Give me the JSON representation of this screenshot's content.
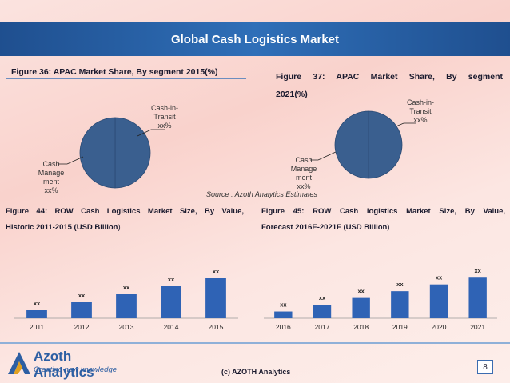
{
  "header": {
    "title": "Global Cash Logistics Market"
  },
  "source": "Source : Azoth Analytics Estimates",
  "footer": {
    "logo_name": "Azoth Analytics",
    "logo_tagline": "Creating new knowledge",
    "copyright": "(c) AZOTH Analytics",
    "page_number": "8"
  },
  "chart_data": [
    {
      "type": "pie",
      "title": "Figure 36: APAC Market Share, By segment 2015(%)",
      "categories": [
        "Cash-in-Transit",
        "Cash Management"
      ],
      "values": [
        50,
        50
      ],
      "labels": [
        "Cash-in-Transit xx%",
        "Cash Manage ment xx%"
      ],
      "colors": [
        "#3a5f8f",
        "#3a5f8f"
      ]
    },
    {
      "type": "pie",
      "title_line1": "Figure 37: APAC Market Share, By segment",
      "title_line2": "2021(%)",
      "categories": [
        "Cash-in-Transit",
        "Cash Management"
      ],
      "values": [
        50,
        50
      ],
      "labels": [
        "Cash-in-Transit xx%",
        "Cash Manage ment xx%"
      ],
      "colors": [
        "#3a5f8f",
        "#3a5f8f"
      ]
    },
    {
      "type": "bar",
      "title_line1": "Figure 44: ROW Cash Logistics Market Size, By Value,",
      "title_line2": "Historic 2011-2015 (USD Billion",
      "title_tail": ")",
      "categories": [
        "2011",
        "2012",
        "2013",
        "2014",
        "2015"
      ],
      "values": [
        1,
        2,
        3,
        4,
        5
      ],
      "data_labels": [
        "xx",
        "xx",
        "xx",
        "xx",
        "xx"
      ],
      "ylim": [
        0,
        5.5
      ],
      "bar_color": "#2f63b5"
    },
    {
      "type": "bar",
      "title_line1": "Figure 45: ROW Cash logistics Market Size, By Value,",
      "title_line2": "Forecast 2016E-2021F (USD Billion",
      "title_tail": ")",
      "categories": [
        "2016",
        "2017",
        "2018",
        "2019",
        "2020",
        "2021"
      ],
      "values": [
        1,
        2,
        3,
        4,
        5,
        6
      ],
      "data_labels": [
        "xx",
        "xx",
        "xx",
        "xx",
        "xx",
        "xx"
      ],
      "ylim": [
        0,
        6.5
      ],
      "bar_color": "#2f63b5"
    }
  ]
}
